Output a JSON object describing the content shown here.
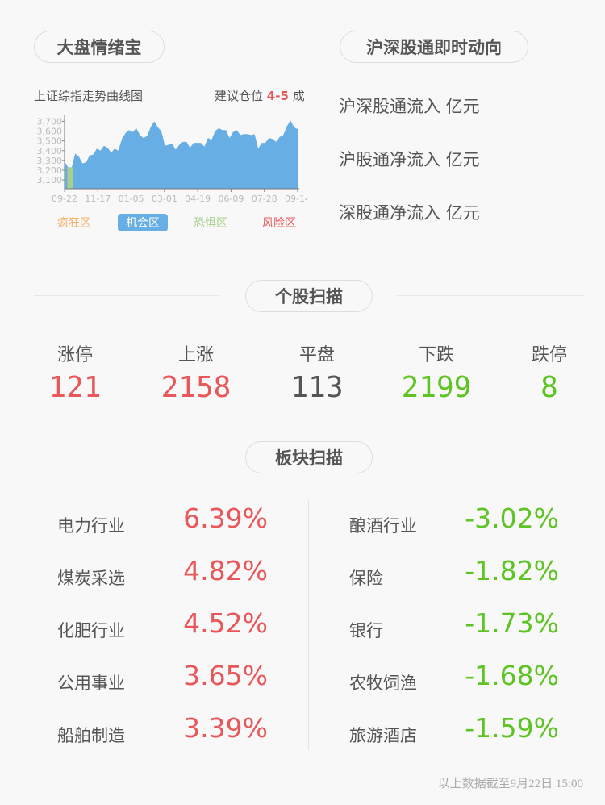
{
  "left_header": {
    "title": "大盘情绪宝",
    "chart_title": "上证综指走势曲线图",
    "advice_prefix": "建议仓位",
    "advice_value": "4-5",
    "advice_suffix": "成"
  },
  "chart_data": {
    "type": "area",
    "title": "上证综指走势曲线图",
    "x_ticks": [
      "09-22",
      "11-17",
      "01-05",
      "03-01",
      "04-19",
      "06-09",
      "07-28",
      "09-14"
    ],
    "y_ticks": [
      "3,100",
      "3,200",
      "3,300",
      "3,400",
      "3,500",
      "3,600",
      "3,700"
    ],
    "ylim": [
      3010,
      3720
    ],
    "values": [
      3290,
      3230,
      3230,
      3370,
      3340,
      3270,
      3280,
      3350,
      3360,
      3420,
      3400,
      3450,
      3430,
      3380,
      3420,
      3400,
      3520,
      3580,
      3610,
      3590,
      3630,
      3560,
      3530,
      3550,
      3640,
      3700,
      3640,
      3600,
      3450,
      3460,
      3470,
      3410,
      3460,
      3490,
      3490,
      3430,
      3480,
      3480,
      3480,
      3440,
      3530,
      3510,
      3600,
      3630,
      3610,
      3610,
      3530,
      3590,
      3610,
      3560,
      3570,
      3570,
      3560,
      3570,
      3420,
      3480,
      3480,
      3530,
      3520,
      3490,
      3540,
      3560,
      3650,
      3710,
      3640,
      3620
    ],
    "colors": {
      "area": "#66aee3",
      "fear_zone": "#a8d08d"
    },
    "legend": [
      {
        "label": "疯狂区",
        "color": "#f5b06a"
      },
      {
        "label": "机会区",
        "color": "#ffffff",
        "bg": "#66aee3",
        "active": true
      },
      {
        "label": "恐惧区",
        "color": "#a8d08d"
      },
      {
        "label": "风险区",
        "color": "#e8585a"
      }
    ]
  },
  "right_header": {
    "title": "沪深股通即时动向",
    "rows": [
      "沪深股通流入 亿元",
      "沪股通净流入 亿元",
      "深股通净流入 亿元"
    ]
  },
  "stocks": {
    "title": "个股扫描",
    "items": [
      {
        "label": "涨停",
        "value": "121",
        "color": "red"
      },
      {
        "label": "上涨",
        "value": "2158",
        "color": "red"
      },
      {
        "label": "平盘",
        "value": "113",
        "color": "gray"
      },
      {
        "label": "下跌",
        "value": "2199",
        "color": "green"
      },
      {
        "label": "跌停",
        "value": "8",
        "color": "green"
      }
    ]
  },
  "sectors": {
    "title": "板块扫描",
    "gainers": [
      {
        "name": "电力行业",
        "value": "6.39%"
      },
      {
        "name": "煤炭采选",
        "value": "4.82%"
      },
      {
        "name": "化肥行业",
        "value": "4.52%"
      },
      {
        "name": "公用事业",
        "value": "3.65%"
      },
      {
        "name": "船舶制造",
        "value": "3.39%"
      }
    ],
    "losers": [
      {
        "name": "酿酒行业",
        "value": "-3.02%"
      },
      {
        "name": "保险",
        "value": "-1.82%"
      },
      {
        "name": "银行",
        "value": "-1.73%"
      },
      {
        "name": "农牧饲渔",
        "value": "-1.68%"
      },
      {
        "name": "旅游酒店",
        "value": "-1.59%"
      }
    ]
  },
  "footer": {
    "note": "以上数据截至9月22日 15:00"
  }
}
